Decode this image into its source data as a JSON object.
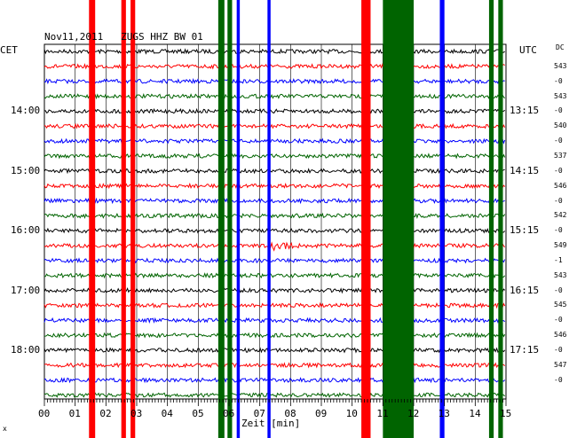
{
  "header": {
    "title": "Nov11,2011   ZUGS HHZ BW 01",
    "left_tz": "CET",
    "right_tz": "UTC",
    "dc_label": "DC"
  },
  "axis": {
    "xlabel": "Zeit [min]",
    "x_ticks": [
      "00",
      "01",
      "02",
      "03",
      "04",
      "05",
      "06",
      "07",
      "08",
      "09",
      "10",
      "11",
      "12",
      "13",
      "14",
      "15"
    ],
    "left_times": [
      "14:00",
      "15:00",
      "16:00",
      "17:00",
      "18:00"
    ],
    "right_times": [
      "13:15",
      "14:15",
      "15:15",
      "16:15",
      "17:15"
    ],
    "corner_mark": "x"
  },
  "dc_values": [
    "543",
    "-0",
    "543",
    "-0",
    "540",
    "-0",
    "537",
    "-0",
    "546",
    "-0",
    "542",
    "-0",
    "549",
    "-1",
    "543",
    "-0",
    "545",
    "-0",
    "546",
    "-0",
    "547",
    "-0"
  ],
  "colors": {
    "trace_cycle": [
      "#000000",
      "#ff0000",
      "#0000ff",
      "#006400"
    ],
    "grid": "#000000",
    "background": "#ffffff"
  },
  "chart_data": {
    "type": "seismogram-helicorder",
    "title": "Nov11,2011   ZUGS HHZ BW 01",
    "xlabel": "Zeit [min]",
    "xlim": [
      0,
      15
    ],
    "trace_count": 24,
    "trace_color_cycle": [
      "black",
      "red",
      "blue",
      "green"
    ],
    "saturated_bands": [
      {
        "color": "red",
        "x_min": [
          1.45,
          1.65
        ]
      },
      {
        "color": "red",
        "x_min": [
          2.5,
          2.65
        ]
      },
      {
        "color": "red",
        "x_min": [
          2.8,
          2.95
        ]
      },
      {
        "color": "green",
        "x_min": [
          5.65,
          5.85
        ]
      },
      {
        "color": "green",
        "x_min": [
          5.95,
          6.1
        ]
      },
      {
        "color": "blue",
        "x_min": [
          6.25,
          6.35
        ]
      },
      {
        "color": "blue",
        "x_min": [
          7.25,
          7.35
        ]
      },
      {
        "color": "red",
        "x_min": [
          10.3,
          10.6
        ]
      },
      {
        "color": "green",
        "x_min": [
          11.0,
          12.0
        ]
      },
      {
        "color": "blue",
        "x_min": [
          12.85,
          13.0
        ]
      },
      {
        "color": "green",
        "x_min": [
          14.45,
          14.6
        ]
      },
      {
        "color": "green",
        "x_min": [
          14.75,
          14.9
        ]
      }
    ],
    "local_event": {
      "trace_index": 13,
      "x_min": 7.25
    }
  }
}
